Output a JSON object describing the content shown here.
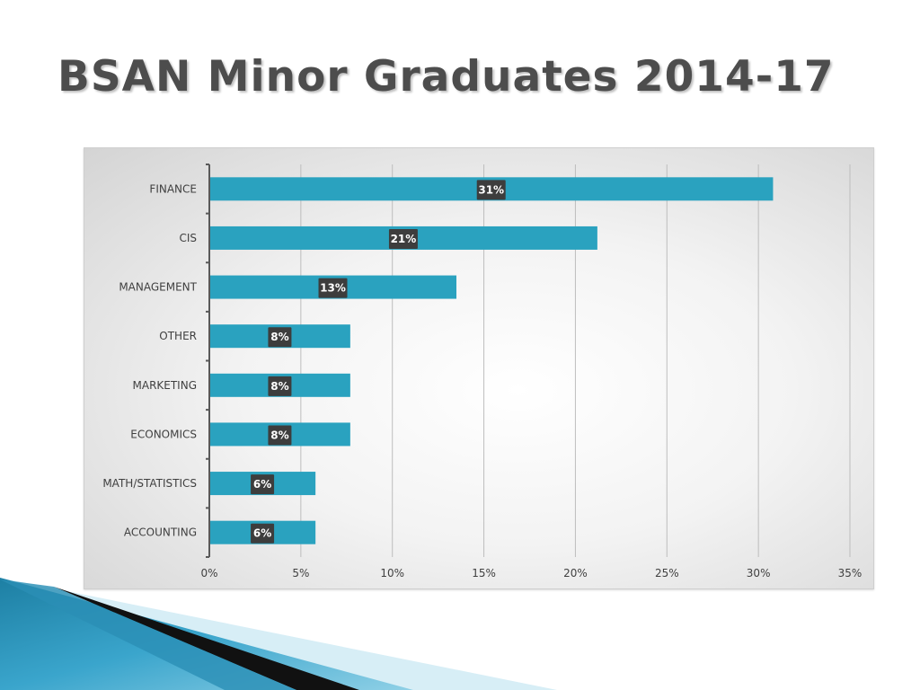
{
  "slide": {
    "title": "BSAN Minor Graduates 2014-17"
  },
  "colors": {
    "bar": "#2aa2bf",
    "data_label_bg": "#3d3d3d",
    "grid": "#bdbdbd",
    "axis": "#595959",
    "title": "#4d4d4d"
  },
  "chart_data": {
    "type": "bar",
    "orientation": "horizontal",
    "categories": [
      "FINANCE",
      "CIS",
      "MANAGEMENT",
      "OTHER",
      "MARKETING",
      "ECONOMICS",
      "MATH/STATISTICS",
      "ACCOUNTING"
    ],
    "values": [
      31,
      21,
      13,
      8,
      8,
      8,
      6,
      6
    ],
    "bar_values": [
      30.8,
      21.2,
      13.5,
      7.7,
      7.7,
      7.7,
      5.8,
      5.8
    ],
    "data_labels": [
      "31%",
      "21%",
      "13%",
      "8%",
      "8%",
      "8%",
      "6%",
      "6%"
    ],
    "title": "",
    "xlabel": "",
    "ylabel": "",
    "xlim": [
      0,
      35
    ],
    "x_ticks": [
      0,
      5,
      10,
      15,
      20,
      25,
      30,
      35
    ],
    "x_tick_labels": [
      "0%",
      "5%",
      "10%",
      "15%",
      "20%",
      "25%",
      "30%",
      "35%"
    ],
    "grid": "vertical",
    "legend": "none"
  }
}
